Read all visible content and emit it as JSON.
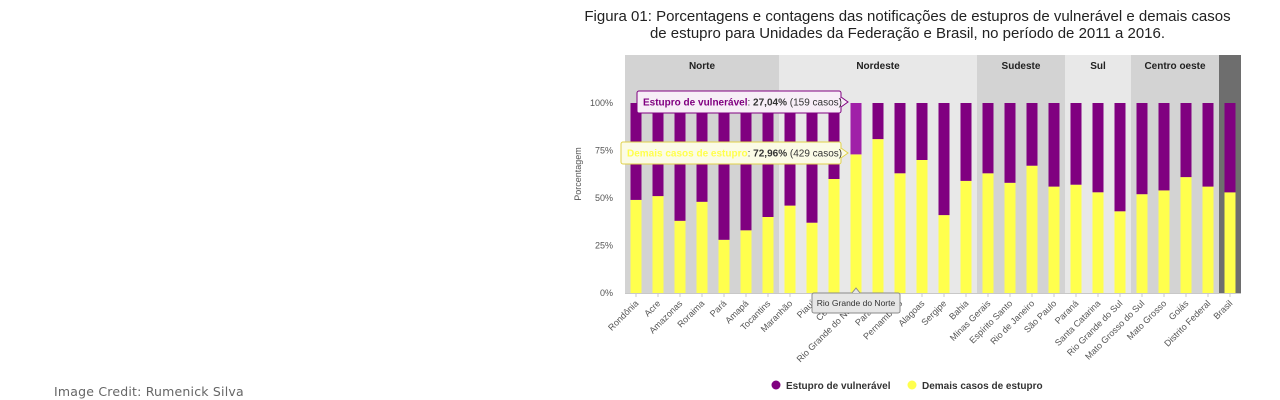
{
  "title_line1": "Figura 01: Porcentagens e contagens das notificações de estupros de vulnerável e demais casos",
  "title_line2": "de estupro para Unidades da Federação e Brasil, no período de 2011 a 2016.",
  "credit": "Image Credit: Rumenick Silva",
  "colors": {
    "vulneravel": "#800080",
    "demais": "#ffff4d",
    "highlight_vulneravel": "#a020a8",
    "region_dark": "#d3d3d3",
    "region_light": "#e8e8e8",
    "brasil_band": "#6e6e6e"
  },
  "tooltips": {
    "vulneravel": {
      "series": "Estupro de vulnerável",
      "pct": "27,04%",
      "count": "(159 casos)"
    },
    "demais": {
      "series": "Demais casos de estupro",
      "pct": "72,96%",
      "count": "(429 casos)"
    },
    "category": "Rio Grande do Norte"
  },
  "chart_data": {
    "type": "bar",
    "stacked": true,
    "percent": true,
    "ylabel": "Porcentagem",
    "yticks": [
      "0%",
      "25%",
      "50%",
      "75%",
      "100%"
    ],
    "ylim": [
      0,
      100
    ],
    "regions": [
      {
        "name": "Norte",
        "count": 7
      },
      {
        "name": "Nordeste",
        "count": 9
      },
      {
        "name": "Sudeste",
        "count": 4
      },
      {
        "name": "Sul",
        "count": 3
      },
      {
        "name": "Centro oeste",
        "count": 4
      },
      {
        "name": "",
        "count": 1
      }
    ],
    "categories": [
      "Rondônia",
      "Acre",
      "Amazonas",
      "Roraima",
      "Pará",
      "Amapá",
      "Tocantins",
      "Maranhão",
      "Piauí",
      "Ceará",
      "Rio Grande do Norte",
      "Paraíba",
      "Pernambuco",
      "Alagoas",
      "Sergipe",
      "Bahia",
      "Minas Gerais",
      "Espírito Santo",
      "Rio de Janeiro",
      "São Paulo",
      "Paraná",
      "Santa Catarina",
      "Rio Grande do Sul",
      "Mato Grosso do Sul",
      "Mato Grosso",
      "Goiás",
      "Distrito Federal",
      "Brasil"
    ],
    "series": [
      {
        "name": "Estupro de vulnerável",
        "values": [
          51,
          49,
          62,
          52,
          72,
          67,
          60,
          54,
          63,
          40,
          27.04,
          19,
          37,
          30,
          59,
          41,
          37,
          42,
          33,
          44,
          43,
          47,
          57,
          48,
          46,
          39,
          44,
          47
        ]
      },
      {
        "name": "Demais casos de estupro",
        "values": [
          49,
          51,
          38,
          48,
          28,
          33,
          40,
          46,
          37,
          60,
          72.96,
          81,
          63,
          70,
          41,
          59,
          63,
          58,
          67,
          56,
          57,
          53,
          43,
          52,
          54,
          61,
          56,
          53
        ]
      }
    ],
    "highlighted_category": "Rio Grande do Norte",
    "legend_position": "bottom",
    "grid": false
  }
}
